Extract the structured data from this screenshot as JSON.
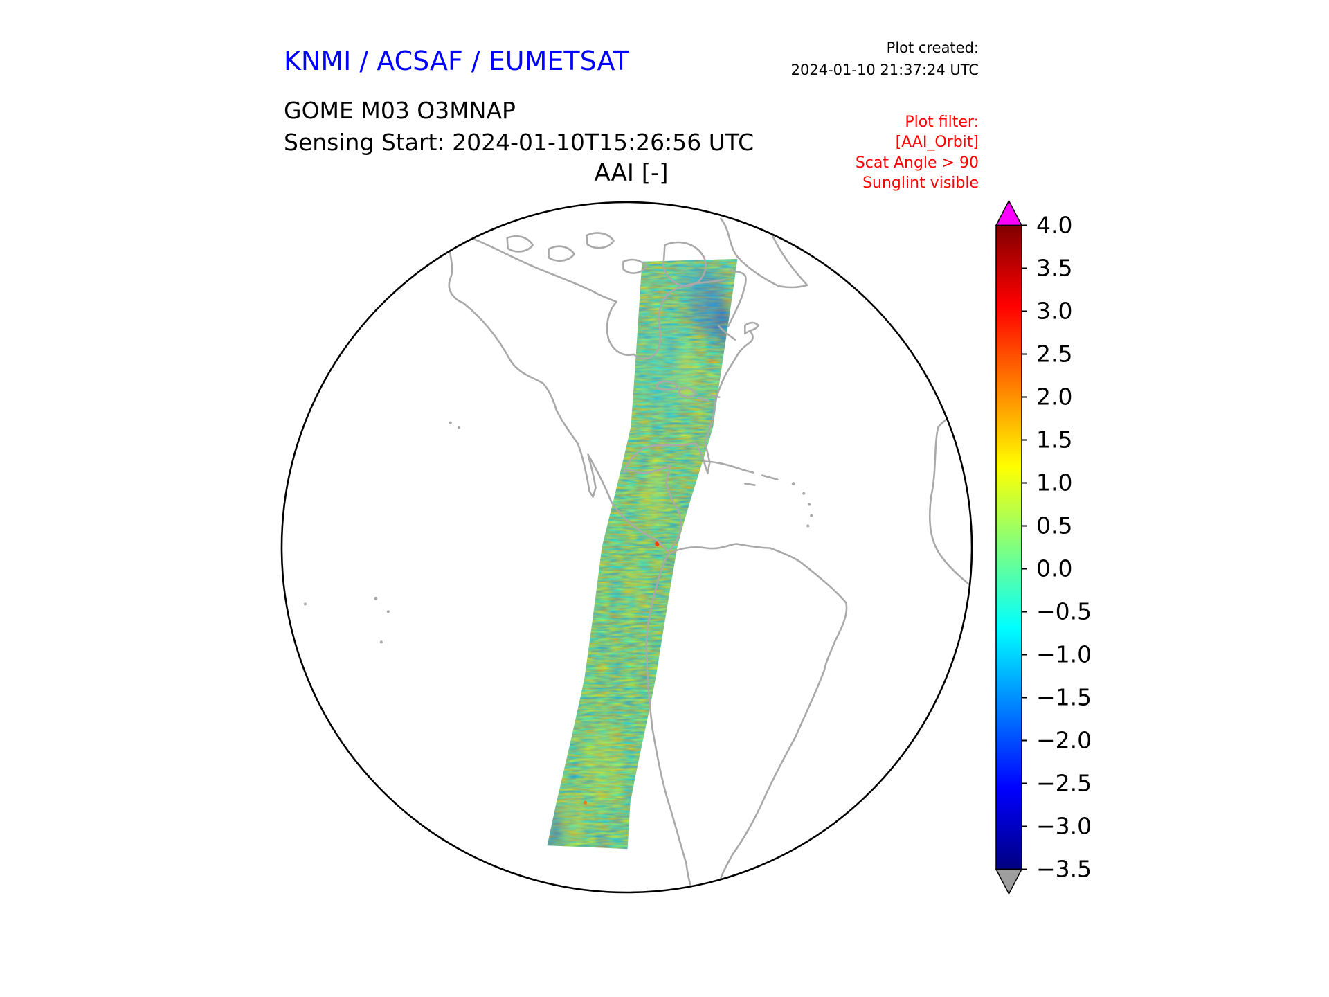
{
  "header": {
    "agency_title": "KNMI / ACSAF / EUMETSAT",
    "plot_created_label": "Plot created:",
    "plot_created_timestamp": "2024-01-10 21:37:24 UTC",
    "product_title": "GOME M03 O3MNAP",
    "sensing_start_label": "Sensing Start: 2024-01-10T15:26:56 UTC",
    "plot_filter": {
      "title": "Plot filter:",
      "lines": [
        "[AAI_Orbit]",
        "Scat Angle > 90",
        "Sunglint visible"
      ]
    }
  },
  "colors": {
    "agency_title_blue": "#0000ff",
    "plot_filter_red": "#ff0000",
    "coastline_gray": "#a9a9a9",
    "globe_outline": "#000000"
  },
  "chart_data": {
    "type": "heatmap",
    "subtype": "satellite-swath-map",
    "projection": "orthographic globe centered on the Americas (~90W)",
    "title": "AAI [-]",
    "quantity": "Absorbing Aerosol Index (dimensionless)",
    "swath": {
      "description": "Single polar-orbit swath running from north-northeast (eastern Canada / Labrador) south-southwest over the Great Lakes, Gulf of Mexico, Central America and western South America down to Patagonia",
      "typical_values": "mostly -1.0 to +1.0 (cyan/green) with scattered yellow pixels near 1.0-1.5 and rare red/orange pixels near 3"
    },
    "colorbar": {
      "vmin": -3.5,
      "vmax": 4.0,
      "orientation": "vertical",
      "position": "right",
      "ticks": [
        4.0,
        3.5,
        3.0,
        2.5,
        2.0,
        1.5,
        1.0,
        0.5,
        0.0,
        -0.5,
        -1.0,
        -1.5,
        -2.0,
        -2.5,
        -3.0,
        -3.5
      ],
      "tick_labels": [
        "4.0",
        "3.5",
        "3.0",
        "2.5",
        "2.0",
        "1.5",
        "1.0",
        "0.5",
        "0.0",
        "−0.5",
        "−1.0",
        "−1.5",
        "−2.0",
        "−2.5",
        "−3.0",
        "−3.5"
      ],
      "colormap": "jet-like",
      "gradient_stops": [
        {
          "pos": 0,
          "color": "#800000"
        },
        {
          "pos": 12.5,
          "color": "#ff0000"
        },
        {
          "pos": 37.5,
          "color": "#ffff00"
        },
        {
          "pos": 62.5,
          "color": "#00ffff"
        },
        {
          "pos": 87.5,
          "color": "#0000ff"
        },
        {
          "pos": 100,
          "color": "#000080"
        }
      ],
      "over_color": "#ff00ff",
      "under_color": "#9e9e9e"
    }
  }
}
